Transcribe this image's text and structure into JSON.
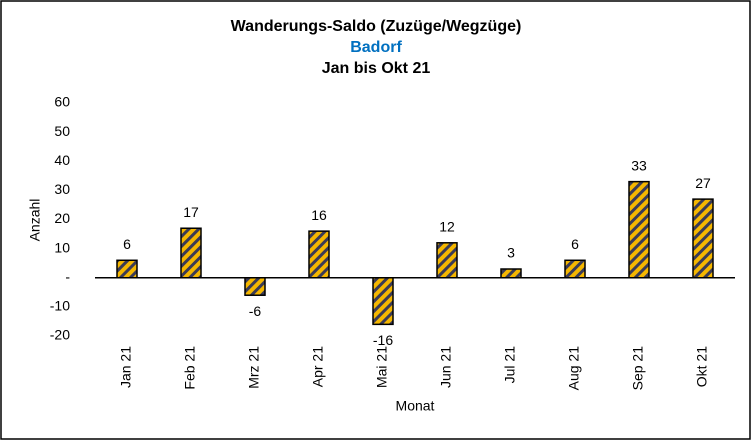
{
  "chart_data": {
    "type": "bar",
    "title": "Wanderungs-Saldo (Zuzüge/Wegzüge)",
    "subtitle": "Badorf",
    "subtitle_color": "#0070c0",
    "period": "Jan bis Okt 21",
    "x_label": "Monat",
    "y_label": "Anzahl",
    "categories": [
      "Jan 21",
      "Feb 21",
      "Mrz 21",
      "Apr 21",
      "Mai 21",
      "Jun 21",
      "Jul 21",
      "Aug 21",
      "Sep 21",
      "Okt 21"
    ],
    "values": [
      6,
      17,
      -6,
      16,
      -16,
      12,
      3,
      6,
      33,
      27
    ],
    "color": "#f5b700",
    "stripe_color": "#3b3b55",
    "ylim": [
      -20,
      60
    ],
    "yticks": [
      -20,
      -10,
      {
        "value": 0,
        "label": "-"
      },
      10,
      20,
      30,
      40,
      50,
      60
    ],
    "grid": false
  }
}
